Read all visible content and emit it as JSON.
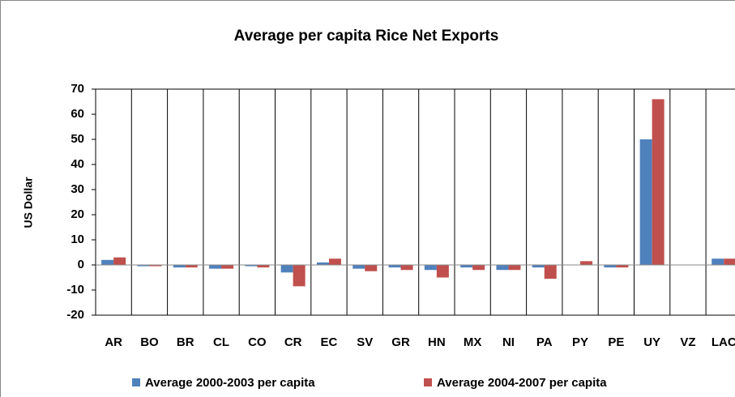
{
  "chart_data": {
    "type": "bar",
    "title": "Average per capita Rice Net Exports",
    "y_label": "US Dollar",
    "categories": [
      "AR",
      "BO",
      "BR",
      "CL",
      "CO",
      "CR",
      "EC",
      "SV",
      "GR",
      "HN",
      "MX",
      "NI",
      "PA",
      "PY",
      "PE",
      "UY",
      "VZ",
      "LAC"
    ],
    "series": [
      {
        "name": "Average 2000-2003 per capita",
        "color": "#4f81bd",
        "values": [
          2,
          -0.5,
          -1,
          -1.5,
          -0.5,
          -3,
          1,
          -1.5,
          -1,
          -2,
          -1,
          -2,
          -1,
          0,
          -1,
          50,
          0,
          2.5
        ]
      },
      {
        "name": "Average 2004-2007 per capita",
        "color": "#c0504d",
        "values": [
          3,
          -0.5,
          -1,
          -1.5,
          -1,
          -8.5,
          2.5,
          -2.5,
          -2,
          -5,
          -2,
          -2,
          -5.5,
          1.5,
          -1,
          66,
          0,
          2.5
        ]
      }
    ],
    "ylim": [
      -20,
      70
    ],
    "yticks": [
      -20,
      -10,
      0,
      10,
      20,
      30,
      40,
      50,
      60,
      70
    ],
    "category_grid": true,
    "legend": "bottom"
  }
}
